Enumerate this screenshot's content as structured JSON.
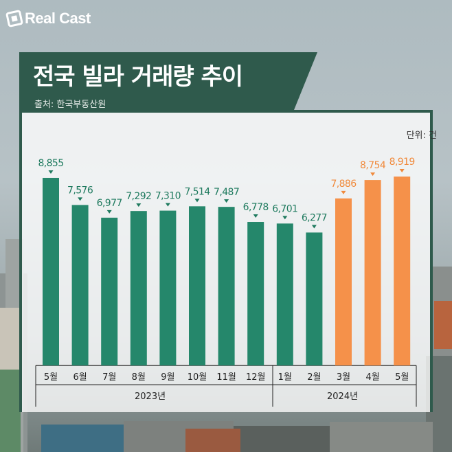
{
  "brand": "Real Cast",
  "title": "전국 빌라 거래량 추이",
  "source": "출처: 한국부동산원",
  "unit": "단위: 건",
  "years": [
    "2023년",
    "2024년"
  ],
  "colors": {
    "green": "#25876b",
    "orange": "#f5914a",
    "green_label": "#1e7a5e",
    "orange_label": "#f08a3c",
    "banner": "#2f5a4c"
  },
  "chart_data": {
    "type": "bar",
    "categories": [
      "5월",
      "6월",
      "7월",
      "8월",
      "9월",
      "10월",
      "11월",
      "12월",
      "1월",
      "2월",
      "3월",
      "4월",
      "5월"
    ],
    "values": [
      8855,
      7576,
      6977,
      7292,
      7310,
      7514,
      7487,
      6778,
      6701,
      6277,
      7886,
      8754,
      8919
    ],
    "value_labels": [
      "8,855",
      "7,576",
      "6,977",
      "7,292",
      "7,310",
      "7,514",
      "7,487",
      "6,778",
      "6,701",
      "6,277",
      "7,886",
      "8,754",
      "8,919"
    ],
    "highlight": [
      false,
      false,
      false,
      false,
      false,
      false,
      false,
      false,
      false,
      false,
      true,
      true,
      true
    ],
    "ylim": [
      0,
      8919
    ]
  }
}
